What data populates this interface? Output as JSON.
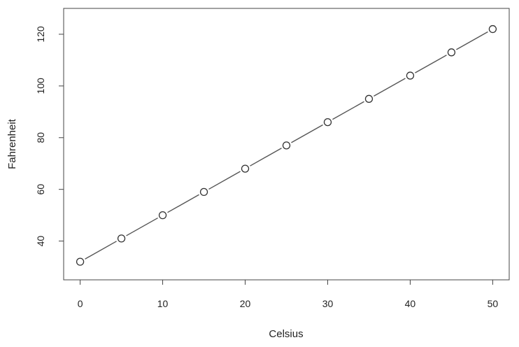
{
  "chart_data": {
    "type": "line",
    "title": "",
    "xlabel": "Celsius",
    "ylabel": "Fahrenheit",
    "xlim": [
      -2,
      52
    ],
    "ylim": [
      25,
      130
    ],
    "x_ticks": [
      0,
      10,
      20,
      30,
      40,
      50
    ],
    "y_ticks": [
      40,
      60,
      80,
      100,
      120
    ],
    "x_tick_labels": [
      "0",
      "10",
      "20",
      "30",
      "40",
      "50"
    ],
    "y_tick_labels": [
      "40",
      "60",
      "80",
      "100",
      "120"
    ],
    "grid": false,
    "legend": "none",
    "marker": "open-circle",
    "line_color": "#555555",
    "series": [
      {
        "x": [
          0,
          5,
          10,
          15,
          20,
          25,
          30,
          35,
          40,
          45,
          50
        ],
        "y": [
          32,
          41,
          50,
          59,
          68,
          77,
          86,
          95,
          104,
          113,
          122
        ]
      }
    ]
  }
}
